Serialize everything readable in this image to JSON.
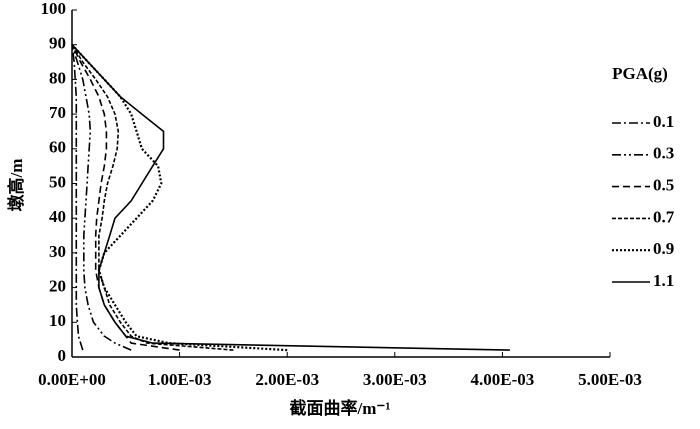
{
  "chart_data": {
    "type": "line",
    "xlabel": "截面曲率/m⁻¹",
    "ylabel": "墩高/m",
    "legend_title": "PGA(g)",
    "legend": "right",
    "xlim": [
      0,
      0.005
    ],
    "xticks": [
      {
        "value": 0,
        "label": "0.00E+00"
      },
      {
        "value": 0.001,
        "label": "1.00E-03"
      },
      {
        "value": 0.002,
        "label": "2.00E-03"
      },
      {
        "value": 0.003,
        "label": "3.00E-03"
      },
      {
        "value": 0.004,
        "label": "4.00E-03"
      },
      {
        "value": 0.005,
        "label": "5.00E-03"
      }
    ],
    "ylim": [
      0,
      100
    ],
    "yticks": [
      0,
      10,
      20,
      30,
      40,
      50,
      60,
      70,
      80,
      90,
      100
    ],
    "heights": [
      2,
      4,
      6,
      10,
      15,
      20,
      25,
      30,
      35,
      40,
      45,
      50,
      55,
      60,
      65,
      70,
      75,
      80,
      85,
      90
    ],
    "series": [
      {
        "name": "0.1",
        "color": "#000",
        "style": "dashdot",
        "values": [
          0.0001,
          8e-05,
          6e-05,
          5e-05,
          4e-05,
          4e-05,
          4e-05,
          4e-05,
          4e-05,
          4e-05,
          4e-05,
          4e-05,
          4e-05,
          4e-05,
          4e-05,
          4e-05,
          4e-05,
          3e-05,
          2e-05,
          0
        ]
      },
      {
        "name": "0.3",
        "color": "#000",
        "style": "dashdotdot",
        "values": [
          0.00055,
          0.0004,
          0.0003,
          0.0002,
          0.00015,
          0.00012,
          0.00011,
          0.00011,
          0.00011,
          0.00012,
          0.00013,
          0.00014,
          0.00015,
          0.00016,
          0.00017,
          0.00016,
          0.00013,
          0.0001,
          5e-05,
          0
        ]
      },
      {
        "name": "0.5",
        "color": "#000",
        "style": "dashed",
        "values": [
          0.001,
          0.00055,
          0.0005,
          0.0004,
          0.0003,
          0.00025,
          0.00022,
          0.00022,
          0.00022,
          0.00023,
          0.00025,
          0.00027,
          0.0003,
          0.00032,
          0.00032,
          0.0003,
          0.00025,
          0.00017,
          8e-05,
          0
        ]
      },
      {
        "name": "0.7",
        "color": "#000",
        "style": "shortdash",
        "values": [
          0.0015,
          0.0007,
          0.00055,
          0.00045,
          0.00035,
          0.0003,
          0.00025,
          0.00025,
          0.00025,
          0.00028,
          0.0003,
          0.00033,
          0.00038,
          0.00042,
          0.00043,
          0.0004,
          0.00033,
          0.00022,
          0.0001,
          0
        ]
      },
      {
        "name": "0.9",
        "color": "#000",
        "style": "dotted",
        "values": [
          0.002,
          0.0009,
          0.0006,
          0.0005,
          0.0004,
          0.0003,
          0.00025,
          0.0003,
          0.00045,
          0.0006,
          0.00075,
          0.00083,
          0.0008,
          0.00065,
          0.0006,
          0.00055,
          0.00045,
          0.0003,
          0.00015,
          0
        ]
      },
      {
        "name": "1.1",
        "color": "#000",
        "style": "solid",
        "values": [
          0.00407,
          0.00075,
          0.0005,
          0.0004,
          0.0003,
          0.00025,
          0.00025,
          0.0003,
          0.00035,
          0.0004,
          0.00055,
          0.00065,
          0.00075,
          0.00085,
          0.00085,
          0.00065,
          0.00045,
          0.0003,
          0.00015,
          0
        ]
      }
    ]
  }
}
